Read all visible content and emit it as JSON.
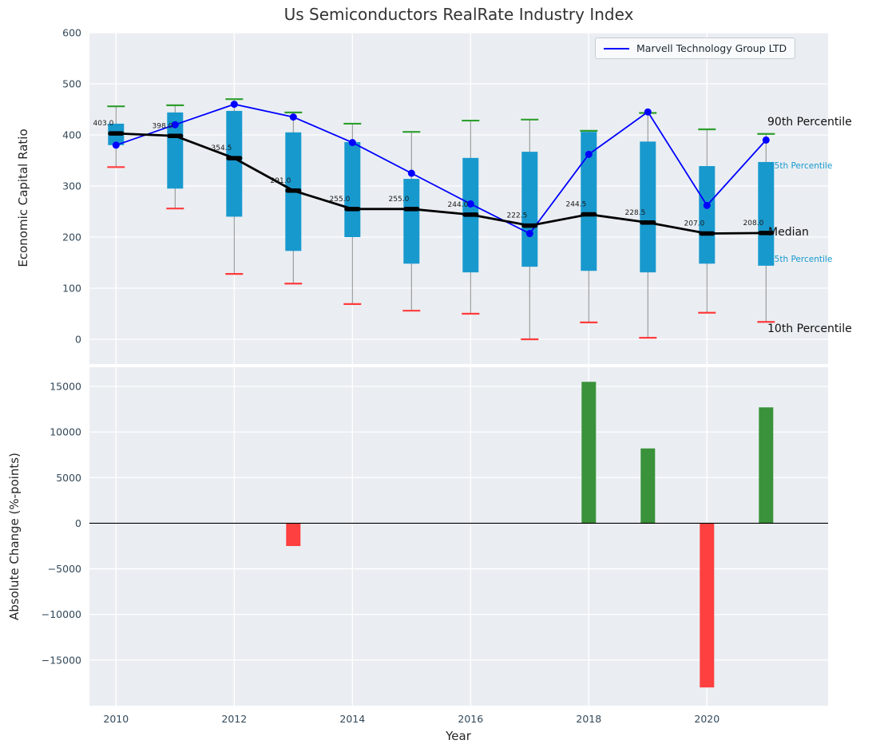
{
  "title": "Us Semiconductors RealRate Industry Index",
  "legend": {
    "items": [
      {
        "label": "Marvell Technology Group LTD",
        "color": "#0000ff"
      }
    ]
  },
  "annotations": {
    "p90": "90th Percentile",
    "p75": "75th Percentile",
    "median": "Median",
    "p25": "25th Percentile",
    "p10": "10th Percentile"
  },
  "colors": {
    "plot_bg": "#eaeef2",
    "grid": "#ffffff",
    "box": "#1899ce",
    "green": "#2e9e2e",
    "red": "#ff3b3b",
    "whisker": "#8c8c8c",
    "tick_text": "#33495a",
    "title_text": "#333333",
    "marvell_line": "#0000ff",
    "median_line": "#000000",
    "bar_green": "#3a923a",
    "bar_red": "#ff4040"
  },
  "chart_data": [
    {
      "type": "boxplot",
      "title": "Us Semiconductors RealRate Industry Index",
      "ylabel": "Economic Capital Ratio",
      "xlabel": "",
      "ylim": [
        -48.4,
        600
      ],
      "yticks": [
        0,
        100,
        200,
        300,
        400,
        500,
        600
      ],
      "xticks": [
        2010,
        2012,
        2014,
        2016,
        2018,
        2020
      ],
      "grid": true,
      "legend_position": "upper right",
      "x": [
        2010,
        2011,
        2012,
        2013,
        2014,
        2015,
        2016,
        2017,
        2018,
        2019,
        2020,
        2021
      ],
      "boxes": {
        "p90": [
          456,
          458,
          470,
          444,
          422,
          406,
          428,
          430,
          408,
          443,
          411,
          402
        ],
        "q3": [
          422,
          444,
          447,
          405,
          386,
          314,
          355,
          367,
          406,
          387,
          339,
          347
        ],
        "median": [
          403,
          398,
          354.5,
          291,
          255,
          255,
          244,
          222.5,
          244.5,
          228.5,
          207,
          208
        ],
        "q1": [
          380,
          295,
          240,
          173,
          200,
          148,
          131,
          142,
          134,
          131,
          148,
          144
        ],
        "p10": [
          337,
          256,
          128,
          109,
          69,
          56,
          50,
          0,
          33,
          3,
          52,
          34
        ]
      },
      "median_labels": [
        "403.0",
        "398.0",
        "354.5",
        "291.0",
        "255.0",
        "255.0",
        "244.0",
        "222.5",
        "244.5",
        "228.5",
        "207.0",
        "208.0"
      ],
      "series": [
        {
          "name": "Marvell Technology Group LTD",
          "type": "line",
          "color": "#0000ff",
          "values": [
            380,
            420,
            460,
            435,
            385,
            325,
            265,
            207,
            362,
            445,
            262,
            390
          ]
        },
        {
          "name": "Median",
          "type": "line",
          "color": "#000000",
          "values": [
            403,
            398,
            354.5,
            291,
            255,
            255,
            244,
            222.5,
            244.5,
            228.5,
            207,
            208
          ]
        }
      ]
    },
    {
      "type": "bar",
      "title": "",
      "ylabel": "Absolute Change (%-points)",
      "xlabel": "Year",
      "ylim": [
        -20000,
        17100
      ],
      "yticks": [
        -15000,
        -10000,
        -5000,
        0,
        5000,
        10000,
        15000
      ],
      "xticks": [
        2010,
        2012,
        2014,
        2016,
        2018,
        2020
      ],
      "grid": true,
      "x": [
        2010,
        2011,
        2012,
        2013,
        2014,
        2015,
        2016,
        2017,
        2018,
        2019,
        2020,
        2021
      ],
      "values": [
        0,
        0,
        0,
        -2500,
        0,
        0,
        0,
        0,
        15500,
        8200,
        -18000,
        12700
      ],
      "positive_color": "#3a923a",
      "negative_color": "#ff4040"
    }
  ]
}
